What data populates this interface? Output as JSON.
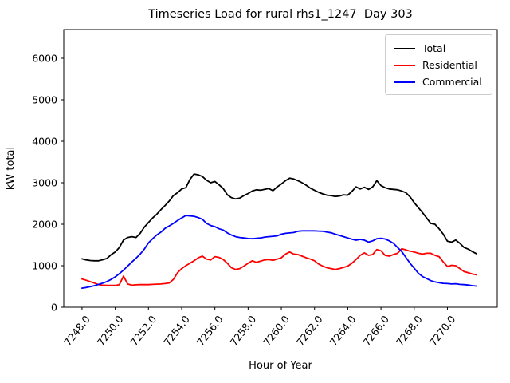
{
  "chart": {
    "title": "Timeseries Load for rural rhs1_1247  Day 303"
  },
  "chart_data": {
    "type": "line",
    "title": "Timeseries Load for rural rhs1_1247  Day 303",
    "xlabel": "Hour of Year",
    "ylabel": "kW total",
    "xlim": [
      7246.9,
      7273.0
    ],
    "ylim": [
      0,
      6692
    ],
    "grid": false,
    "legend_position": "upper right",
    "background_color": "#ffffff",
    "axis_color": "#000000",
    "xticks": [
      {
        "value": 7248,
        "label": "7248.0"
      },
      {
        "value": 7250,
        "label": "7250.0"
      },
      {
        "value": 7252,
        "label": "7252.0"
      },
      {
        "value": 7254,
        "label": "7254.0"
      },
      {
        "value": 7256,
        "label": "7256.0"
      },
      {
        "value": 7258,
        "label": "7258.0"
      },
      {
        "value": 7260,
        "label": "7260.0"
      },
      {
        "value": 7262,
        "label": "7262.0"
      },
      {
        "value": 7264,
        "label": "7264.0"
      },
      {
        "value": 7266,
        "label": "7266.0"
      },
      {
        "value": 7268,
        "label": "7268.0"
      },
      {
        "value": 7270,
        "label": "7270.0"
      }
    ],
    "yticks": [
      {
        "value": 0,
        "label": "0"
      },
      {
        "value": 1000,
        "label": "1000"
      },
      {
        "value": 2000,
        "label": "2000"
      },
      {
        "value": 3000,
        "label": "3000"
      },
      {
        "value": 4000,
        "label": "4000"
      },
      {
        "value": 5000,
        "label": "5000"
      },
      {
        "value": 6000,
        "label": "6000"
      }
    ],
    "x": [
      7248.0,
      7248.25,
      7248.5,
      7248.75,
      7249.0,
      7249.25,
      7249.5,
      7249.75,
      7250.0,
      7250.25,
      7250.5,
      7250.75,
      7251.0,
      7251.25,
      7251.5,
      7251.75,
      7252.0,
      7252.25,
      7252.5,
      7252.75,
      7253.0,
      7253.25,
      7253.5,
      7253.75,
      7254.0,
      7254.25,
      7254.5,
      7254.75,
      7255.0,
      7255.25,
      7255.5,
      7255.75,
      7256.0,
      7256.25,
      7256.5,
      7256.75,
      7257.0,
      7257.25,
      7257.5,
      7257.75,
      7258.0,
      7258.25,
      7258.5,
      7258.75,
      7259.0,
      7259.25,
      7259.5,
      7259.75,
      7260.0,
      7260.25,
      7260.5,
      7260.75,
      7261.0,
      7261.25,
      7261.5,
      7261.75,
      7262.0,
      7262.25,
      7262.5,
      7262.75,
      7263.0,
      7263.25,
      7263.5,
      7263.75,
      7264.0,
      7264.25,
      7264.5,
      7264.75,
      7265.0,
      7265.25,
      7265.5,
      7265.75,
      7266.0,
      7266.25,
      7266.5,
      7266.75,
      7267.0,
      7267.25,
      7267.5,
      7267.75,
      7268.0,
      7268.25,
      7268.5,
      7268.75,
      7269.0,
      7269.25,
      7269.5,
      7269.75,
      7270.0,
      7270.25,
      7270.5,
      7270.75,
      7271.0,
      7271.25,
      7271.5,
      7271.75
    ],
    "series": [
      {
        "name": "Total",
        "color": "#000000",
        "values": [
          1165,
          1140,
          1125,
          1120,
          1120,
          1145,
          1175,
          1265,
          1330,
          1440,
          1620,
          1680,
          1700,
          1680,
          1780,
          1930,
          2040,
          2150,
          2240,
          2350,
          2450,
          2560,
          2690,
          2760,
          2850,
          2880,
          3080,
          3210,
          3190,
          3150,
          3060,
          3000,
          3030,
          2950,
          2860,
          2710,
          2640,
          2610,
          2630,
          2690,
          2740,
          2800,
          2830,
          2820,
          2840,
          2860,
          2810,
          2900,
          2970,
          3050,
          3110,
          3090,
          3050,
          3000,
          2940,
          2870,
          2820,
          2770,
          2730,
          2700,
          2690,
          2670,
          2680,
          2710,
          2700,
          2790,
          2900,
          2850,
          2890,
          2840,
          2900,
          3050,
          2930,
          2880,
          2850,
          2840,
          2830,
          2800,
          2760,
          2660,
          2520,
          2400,
          2280,
          2150,
          2020,
          2000,
          1890,
          1760,
          1590,
          1570,
          1620,
          1540,
          1440,
          1400,
          1340,
          1290
        ]
      },
      {
        "name": "Residential",
        "color": "#ff0000",
        "values": [
          680,
          650,
          615,
          580,
          545,
          530,
          525,
          525,
          525,
          545,
          750,
          560,
          530,
          540,
          545,
          545,
          545,
          550,
          555,
          560,
          570,
          585,
          670,
          830,
          930,
          1000,
          1060,
          1120,
          1190,
          1230,
          1160,
          1140,
          1220,
          1200,
          1150,
          1060,
          950,
          910,
          930,
          990,
          1060,
          1120,
          1080,
          1110,
          1140,
          1150,
          1130,
          1160,
          1190,
          1280,
          1330,
          1280,
          1270,
          1230,
          1190,
          1160,
          1120,
          1040,
          990,
          950,
          930,
          910,
          930,
          960,
          990,
          1060,
          1150,
          1250,
          1310,
          1250,
          1270,
          1390,
          1360,
          1250,
          1230,
          1270,
          1300,
          1410,
          1380,
          1350,
          1330,
          1300,
          1280,
          1300,
          1300,
          1250,
          1220,
          1090,
          980,
          1010,
          1000,
          930,
          860,
          830,
          800,
          780
        ]
      },
      {
        "name": "Commercial",
        "color": "#0000ff",
        "values": [
          460,
          475,
          495,
          520,
          550,
          580,
          620,
          670,
          730,
          810,
          895,
          990,
          1090,
          1180,
          1280,
          1400,
          1550,
          1650,
          1740,
          1810,
          1900,
          1960,
          2020,
          2090,
          2150,
          2210,
          2200,
          2190,
          2160,
          2120,
          2020,
          1970,
          1940,
          1890,
          1860,
          1790,
          1740,
          1700,
          1680,
          1670,
          1655,
          1650,
          1660,
          1670,
          1690,
          1700,
          1710,
          1720,
          1760,
          1780,
          1790,
          1800,
          1830,
          1840,
          1840,
          1840,
          1840,
          1835,
          1830,
          1810,
          1795,
          1760,
          1730,
          1700,
          1670,
          1640,
          1615,
          1635,
          1615,
          1570,
          1600,
          1650,
          1660,
          1645,
          1600,
          1540,
          1440,
          1340,
          1200,
          1060,
          940,
          820,
          740,
          690,
          640,
          610,
          590,
          575,
          570,
          560,
          565,
          550,
          545,
          535,
          520,
          510
        ]
      }
    ]
  }
}
